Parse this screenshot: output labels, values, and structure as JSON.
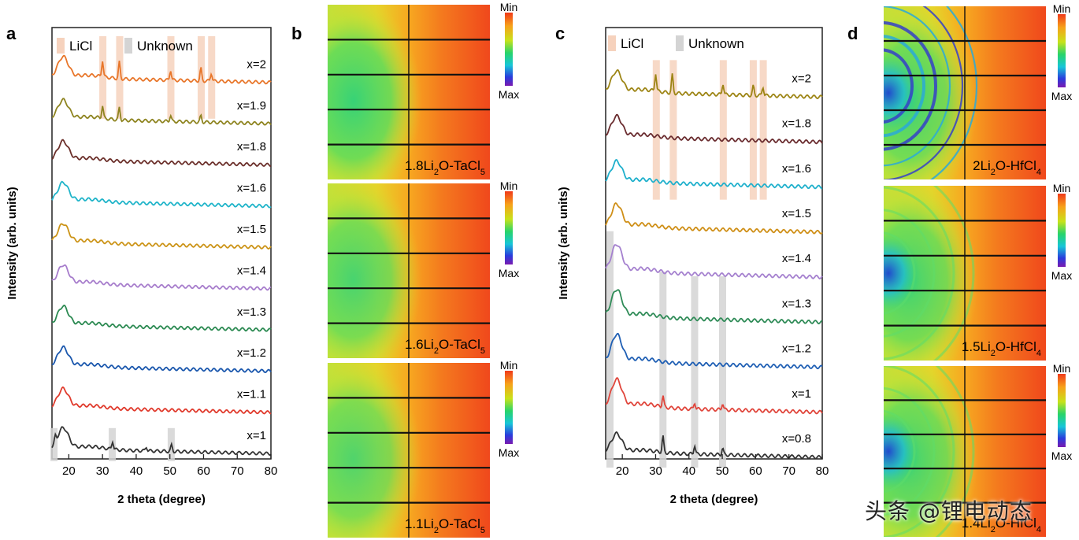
{
  "chart_data": [
    {
      "panel": "a",
      "type": "line",
      "xlabel": "2 theta (degree)",
      "ylabel": "Intensity (arb. units)",
      "xlim": [
        15,
        80
      ],
      "xticks": [
        20,
        30,
        40,
        50,
        60,
        70,
        80
      ],
      "legend": [
        {
          "label": "LiCl",
          "color": "#f6d2bd"
        },
        {
          "label": "Unknown",
          "color": "#d4d4d4"
        }
      ],
      "series": [
        {
          "name": "x=2",
          "color": "#e8762a",
          "offset": 9,
          "hump": 0.5,
          "peaks": [
            {
              "x": 30,
              "h": 0.4
            },
            {
              "x": 35,
              "h": 0.4
            },
            {
              "x": 50.2,
              "h": 0.25
            },
            {
              "x": 59.2,
              "h": 0.3
            },
            {
              "x": 62.3,
              "h": 0.2
            }
          ]
        },
        {
          "name": "x=1.9",
          "color": "#8e8420",
          "offset": 8,
          "hump": 0.45,
          "peaks": [
            {
              "x": 30,
              "h": 0.3
            },
            {
              "x": 35,
              "h": 0.3
            },
            {
              "x": 50.2,
              "h": 0.15
            },
            {
              "x": 59.2,
              "h": 0.15
            }
          ]
        },
        {
          "name": "x=1.8",
          "color": "#6b2f2a",
          "offset": 7,
          "hump": 0.45,
          "peaks": []
        },
        {
          "name": "x=1.6",
          "color": "#1fb4c9",
          "offset": 6,
          "hump": 0.45,
          "peaks": []
        },
        {
          "name": "x=1.5",
          "color": "#cc9418",
          "offset": 5,
          "hump": 0.45,
          "peaks": []
        },
        {
          "name": "x=1.4",
          "color": "#a77dcc",
          "offset": 4,
          "hump": 0.45,
          "peaks": []
        },
        {
          "name": "x=1.3",
          "color": "#2c8a52",
          "offset": 3,
          "hump": 0.45,
          "peaks": []
        },
        {
          "name": "x=1.2",
          "color": "#1a57ad",
          "offset": 2,
          "hump": 0.45,
          "peaks": []
        },
        {
          "name": "x=1.1",
          "color": "#e03a2c",
          "offset": 1,
          "hump": 0.45,
          "peaks": []
        },
        {
          "name": "x=1",
          "color": "#333333",
          "offset": 0,
          "hump": 0.5,
          "peaks": [
            {
              "x": 16,
              "h": 0.15
            },
            {
              "x": 33,
              "h": 0.2
            },
            {
              "x": 43,
              "h": 0.1
            },
            {
              "x": 50.5,
              "h": 0.15
            }
          ]
        }
      ],
      "highlight_bands": [
        {
          "type": "LiCl",
          "x": 30.1,
          "from": 8,
          "to": 10
        },
        {
          "type": "LiCl",
          "x": 35.1,
          "from": 8,
          "to": 10
        },
        {
          "type": "LiCl",
          "x": 50.3,
          "from": 8,
          "to": 10
        },
        {
          "type": "LiCl",
          "x": 59.3,
          "from": 8,
          "to": 10
        },
        {
          "type": "LiCl",
          "x": 62.4,
          "from": 8,
          "to": 10
        },
        {
          "type": "Unknown",
          "x": 15.6,
          "from": -0.3,
          "to": 0.5
        },
        {
          "type": "Unknown",
          "x": 32.9,
          "from": -0.3,
          "to": 0.5
        },
        {
          "type": "Unknown",
          "x": 50.4,
          "from": -0.3,
          "to": 0.5
        }
      ]
    },
    {
      "panel": "c",
      "type": "line",
      "xlabel": "2 theta (degree)",
      "ylabel": "Intensity (arb. units)",
      "xlim": [
        15,
        80
      ],
      "xticks": [
        20,
        30,
        40,
        50,
        60,
        70,
        80
      ],
      "legend": [
        {
          "label": "LiCl",
          "color": "#f6d2bd"
        },
        {
          "label": "Unknown",
          "color": "#d4d4d4"
        }
      ],
      "series": [
        {
          "name": "x=2",
          "color": "#9d8515",
          "offset": 8,
          "hump": 0.45,
          "peaks": [
            {
              "x": 30,
              "h": 0.4
            },
            {
              "x": 35,
              "h": 0.4
            },
            {
              "x": 50.2,
              "h": 0.25
            },
            {
              "x": 59.3,
              "h": 0.2
            },
            {
              "x": 62.2,
              "h": 0.2
            }
          ]
        },
        {
          "name": "x=1.8",
          "color": "#6a2c2f",
          "offset": 7,
          "hump": 0.45,
          "peaks": []
        },
        {
          "name": "x=1.6",
          "color": "#1fb0cc",
          "offset": 6,
          "hump": 0.45,
          "peaks": []
        },
        {
          "name": "x=1.5",
          "color": "#cf8f17",
          "offset": 5,
          "hump": 0.5,
          "peaks": []
        },
        {
          "name": "x=1.4",
          "color": "#a581cf",
          "offset": 4,
          "hump": 0.6,
          "peaks": []
        },
        {
          "name": "x=1.3",
          "color": "#2f8b57",
          "offset": 3,
          "hump": 0.6,
          "peaks": []
        },
        {
          "name": "x=1.2",
          "color": "#1f5fb4",
          "offset": 2,
          "hump": 0.6,
          "peaks": []
        },
        {
          "name": "x=1",
          "color": "#e0453b",
          "offset": 1,
          "hump": 0.6,
          "peaks": [
            {
              "x": 32.2,
              "h": 0.25
            },
            {
              "x": 41.7,
              "h": 0.15
            },
            {
              "x": 50.1,
              "h": 0.15
            }
          ]
        },
        {
          "name": "x=0.8",
          "color": "#333333",
          "offset": 0,
          "hump": 0.4,
          "peaks": [
            {
              "x": 32.2,
              "h": 0.35
            },
            {
              "x": 41.7,
              "h": 0.2
            },
            {
              "x": 50.1,
              "h": 0.15
            }
          ]
        }
      ],
      "highlight_bands": [
        {
          "type": "LiCl",
          "x": 30.2,
          "from": 5.6,
          "to": 8.7
        },
        {
          "type": "LiCl",
          "x": 35.3,
          "from": 5.6,
          "to": 8.7
        },
        {
          "type": "LiCl",
          "x": 50.3,
          "from": 5.6,
          "to": 8.7
        },
        {
          "type": "LiCl",
          "x": 59.3,
          "from": 5.6,
          "to": 8.7
        },
        {
          "type": "LiCl",
          "x": 62.3,
          "from": 5.6,
          "to": 8.7
        },
        {
          "type": "Unknown",
          "x": 16.3,
          "from": -0.35,
          "to": 4.9
        },
        {
          "type": "Unknown",
          "x": 32.2,
          "from": -0.35,
          "to": 4.0
        },
        {
          "type": "Unknown",
          "x": 41.7,
          "from": -0.35,
          "to": 3.9
        },
        {
          "type": "Unknown",
          "x": 50.1,
          "from": -0.35,
          "to": 3.9
        }
      ]
    }
  ],
  "maps_b": [
    {
      "label": "1.8Li",
      "sub1": "2",
      "mid": "O-TaCl",
      "sub2": "5",
      "min_label": "Min",
      "max_label": "Max",
      "green_strength": 0.95
    },
    {
      "label": "1.6Li",
      "sub1": "2",
      "mid": "O-TaCl",
      "sub2": "5",
      "min_label": "Min",
      "max_label": "Max",
      "green_strength": 0.85
    },
    {
      "label": "1.1Li",
      "sub1": "2",
      "mid": "O-TaCl",
      "sub2": "5",
      "min_label": "Min",
      "max_label": "Max",
      "green_strength": 0.8
    }
  ],
  "maps_d": [
    {
      "label": "2Li",
      "sub1": "2",
      "mid": "O-HfCl",
      "sub2": "4",
      "min_label": "Min",
      "max_label": "Max",
      "rings": true
    },
    {
      "label": "1.5Li",
      "sub1": "2",
      "mid": "O-HfCl",
      "sub2": "4",
      "min_label": "Min",
      "max_label": "Max",
      "rings": false
    },
    {
      "label": "1.4Li",
      "sub1": "2",
      "mid": "O-HfCl",
      "sub2": "4",
      "min_label": "Min",
      "max_label": "Max",
      "rings": false
    }
  ],
  "panel_letters": {
    "a": "a",
    "b": "b",
    "c": "c",
    "d": "d"
  },
  "watermark": "头条 @锂电动态"
}
